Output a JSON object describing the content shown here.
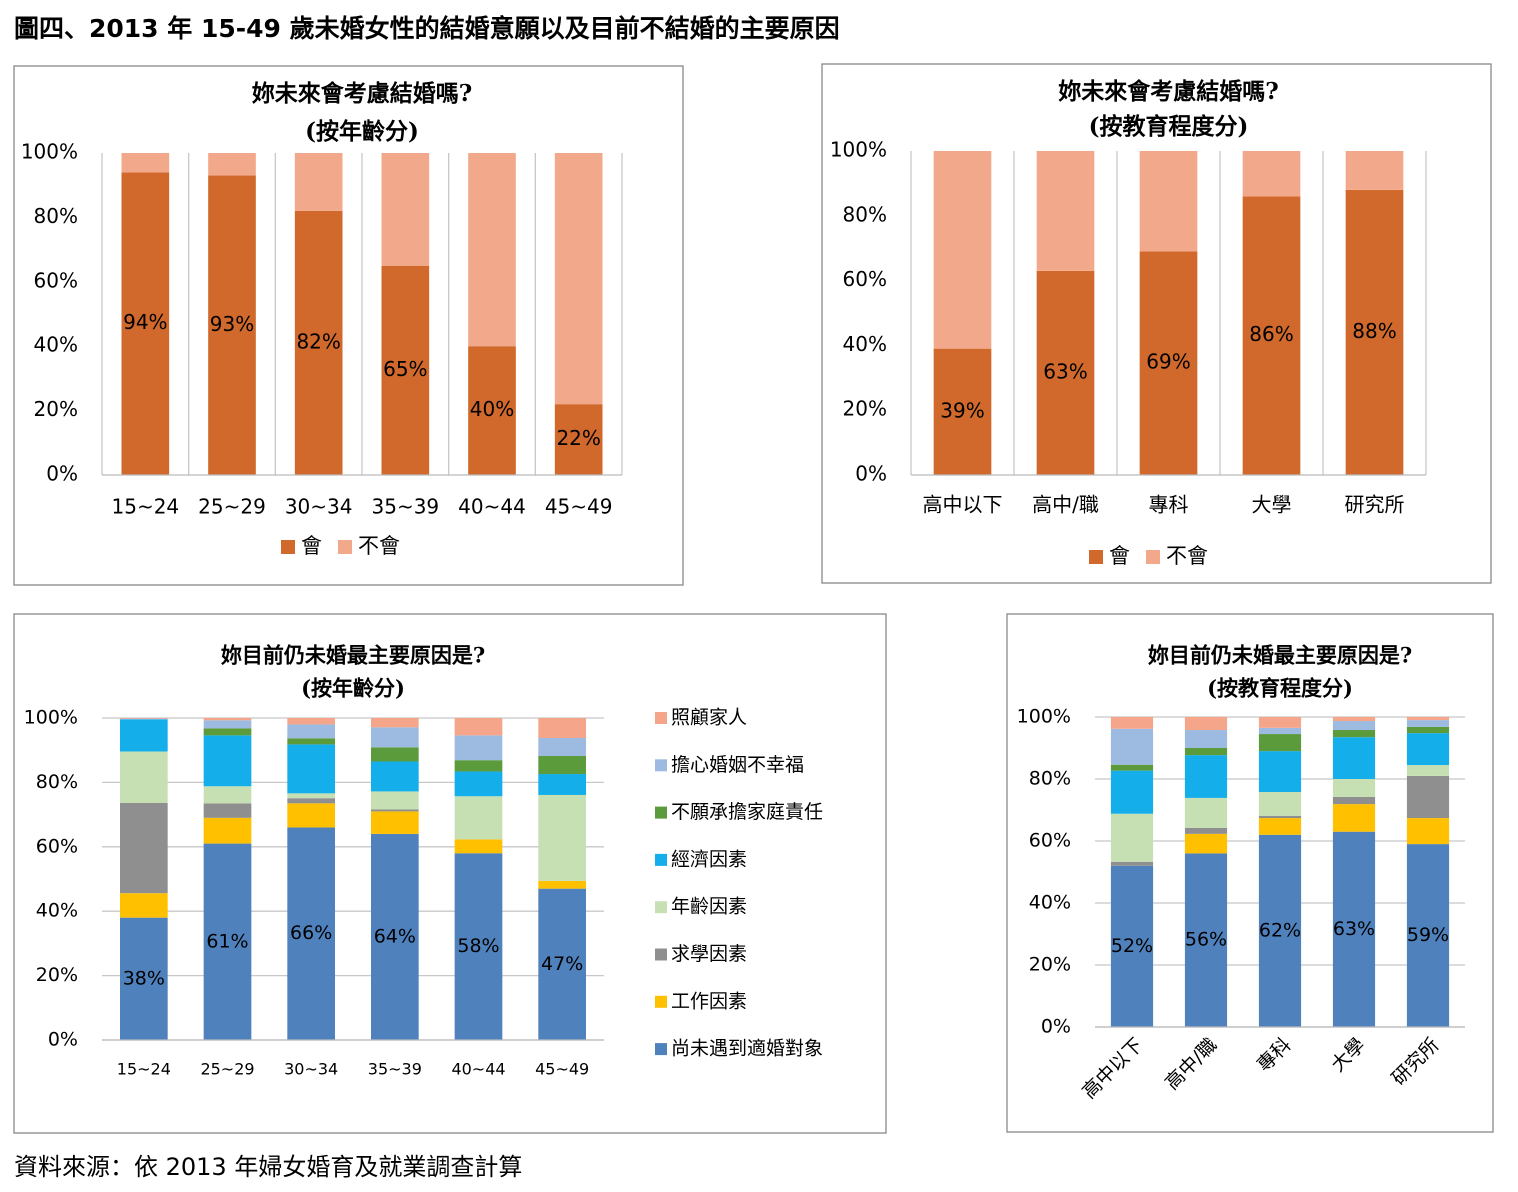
{
  "header": {
    "title": "圖四、2013 年 15-49 歲未婚女性的結婚意願以及目前不結婚的主要原因"
  },
  "footer": {
    "source": "資料來源：依 2013 年婦女婚育及就業調查計算"
  },
  "chart_data": [
    {
      "type": "bar",
      "stacked": true,
      "title": "妳未來會考慮結婚嗎?",
      "subtitle": "(按年齡分)",
      "categories": [
        "15~24",
        "25~29",
        "30~34",
        "35~39",
        "40~44",
        "45~49"
      ],
      "series": [
        {
          "name": "會",
          "color": "#d0692b",
          "values": [
            94,
            93,
            82,
            65,
            40,
            22
          ],
          "value_labels": [
            "94%",
            "93%",
            "82%",
            "65%",
            "40%",
            "22%"
          ]
        },
        {
          "name": "不會",
          "color": "#f2a98b",
          "values": [
            6,
            7,
            18,
            35,
            60,
            78
          ]
        }
      ],
      "ylim": [
        0,
        100
      ],
      "yticks": [
        {
          "value": 0,
          "label": "0%"
        },
        {
          "value": 20,
          "label": "20%"
        },
        {
          "value": 40,
          "label": "40%"
        },
        {
          "value": 60,
          "label": "60%"
        },
        {
          "value": 80,
          "label": "80%"
        },
        {
          "value": 100,
          "label": "100%"
        }
      ],
      "grid": "vertical",
      "legend": "bottom"
    },
    {
      "type": "bar",
      "stacked": true,
      "title": "妳未來會考慮結婚嗎?",
      "subtitle": "(按教育程度分)",
      "categories": [
        "高中以下",
        "高中/職",
        "專科",
        "大學",
        "研究所"
      ],
      "series": [
        {
          "name": "會",
          "color": "#d0692b",
          "values": [
            39,
            63,
            69,
            86,
            88
          ],
          "value_labels": [
            "39%",
            "63%",
            "69%",
            "86%",
            "88%"
          ]
        },
        {
          "name": "不會",
          "color": "#f2a98b",
          "values": [
            61,
            37,
            31,
            14,
            12
          ]
        }
      ],
      "ylim": [
        0,
        100
      ],
      "yticks": [
        {
          "value": 0,
          "label": "0%"
        },
        {
          "value": 20,
          "label": "20%"
        },
        {
          "value": 40,
          "label": "40%"
        },
        {
          "value": 60,
          "label": "60%"
        },
        {
          "value": 80,
          "label": "80%"
        },
        {
          "value": 100,
          "label": "100%"
        }
      ],
      "grid": "vertical",
      "legend": "bottom"
    },
    {
      "type": "bar",
      "stacked": true,
      "title": "妳目前仍未婚最主要原因是?",
      "subtitle": "(按年齡分)",
      "categories": [
        "15~24",
        "25~29",
        "30~34",
        "35~39",
        "40~44",
        "45~49"
      ],
      "series": [
        {
          "name": "尚未遇到適婚對象",
          "color": "#4f81bd",
          "values": [
            38,
            61,
            66,
            64,
            58,
            47
          ],
          "value_labels": [
            "38%",
            "61%",
            "66%",
            "64%",
            "58%",
            "47%"
          ]
        },
        {
          "name": "工作因素",
          "color": "#ffc000",
          "values": [
            7.6,
            8,
            7.5,
            7,
            4.3,
            2.4
          ]
        },
        {
          "name": "求學因素",
          "color": "#8f8f8f",
          "values": [
            28,
            4.5,
            1.6,
            0.6,
            0,
            0
          ]
        },
        {
          "name": "年齡因素",
          "color": "#c6e0b4",
          "values": [
            16,
            5.3,
            1.5,
            5.6,
            13.4,
            26.7
          ]
        },
        {
          "name": "經濟因素",
          "color": "#14aeea",
          "values": [
            10,
            15.8,
            15.2,
            9.3,
            7.7,
            6.5
          ]
        },
        {
          "name": "不願承擔家庭責任",
          "color": "#5b9b3c",
          "values": [
            0,
            2.2,
            1.9,
            4.4,
            3.5,
            5.6
          ]
        },
        {
          "name": "擔心婚姻不幸福",
          "color": "#9dbbe0",
          "values": [
            0.2,
            2.5,
            4.3,
            6.2,
            7.7,
            5.6
          ]
        },
        {
          "name": "照顧家人",
          "color": "#f4a58a",
          "values": [
            0.2,
            0.7,
            2.0,
            2.9,
            5.4,
            6.2
          ]
        }
      ],
      "ylim": [
        0,
        100
      ],
      "yticks": [
        {
          "value": 0,
          "label": "0%"
        },
        {
          "value": 20,
          "label": "20%"
        },
        {
          "value": 40,
          "label": "40%"
        },
        {
          "value": 60,
          "label": "60%"
        },
        {
          "value": 80,
          "label": "80%"
        },
        {
          "value": 100,
          "label": "100%"
        }
      ],
      "grid": "horizontal",
      "legend": "right"
    },
    {
      "type": "bar",
      "stacked": true,
      "title": "妳目前仍未婚最主要原因是?",
      "subtitle": "(按教育程度分)",
      "categories": [
        "高中以下",
        "高中/職",
        "專科",
        "大學",
        "研究所"
      ],
      "series": [
        {
          "name": "尚未遇到適婚對象",
          "color": "#4f81bd",
          "values": [
            52,
            56,
            62,
            63,
            59
          ],
          "value_labels": [
            "52%",
            "56%",
            "62%",
            "63%",
            "59%"
          ]
        },
        {
          "name": "工作因素",
          "color": "#ffc000",
          "values": [
            0,
            6.3,
            5.4,
            8.9,
            8.4
          ]
        },
        {
          "name": "求學因素",
          "color": "#8f8f8f",
          "values": [
            1.3,
            1.9,
            0.7,
            2.3,
            13.6
          ]
        },
        {
          "name": "年齡因素",
          "color": "#c6e0b4",
          "values": [
            15.5,
            9.7,
            7.7,
            5.8,
            3.5
          ]
        },
        {
          "name": "經濟因素",
          "color": "#14aeea",
          "values": [
            13.9,
            13.8,
            13.2,
            13.5,
            10.3
          ]
        },
        {
          "name": "不願承擔家庭責任",
          "color": "#5b9b3c",
          "values": [
            1.9,
            2.3,
            5.5,
            2.3,
            2
          ]
        },
        {
          "name": "擔心婚姻不幸福",
          "color": "#9dbbe0",
          "values": [
            11.6,
            5.8,
            2.0,
            2.9,
            2.2
          ]
        },
        {
          "name": "照顧家人",
          "color": "#f4a58a",
          "values": [
            3.8,
            4.2,
            3.5,
            1.3,
            1
          ]
        }
      ],
      "ylim": [
        0,
        100
      ],
      "yticks": [
        {
          "value": 0,
          "label": "0%"
        },
        {
          "value": 20,
          "label": "20%"
        },
        {
          "value": 40,
          "label": "40%"
        },
        {
          "value": 60,
          "label": "60%"
        },
        {
          "value": 80,
          "label": "80%"
        },
        {
          "value": 100,
          "label": "100%"
        }
      ],
      "grid": "horizontal",
      "legend": false
    }
  ]
}
